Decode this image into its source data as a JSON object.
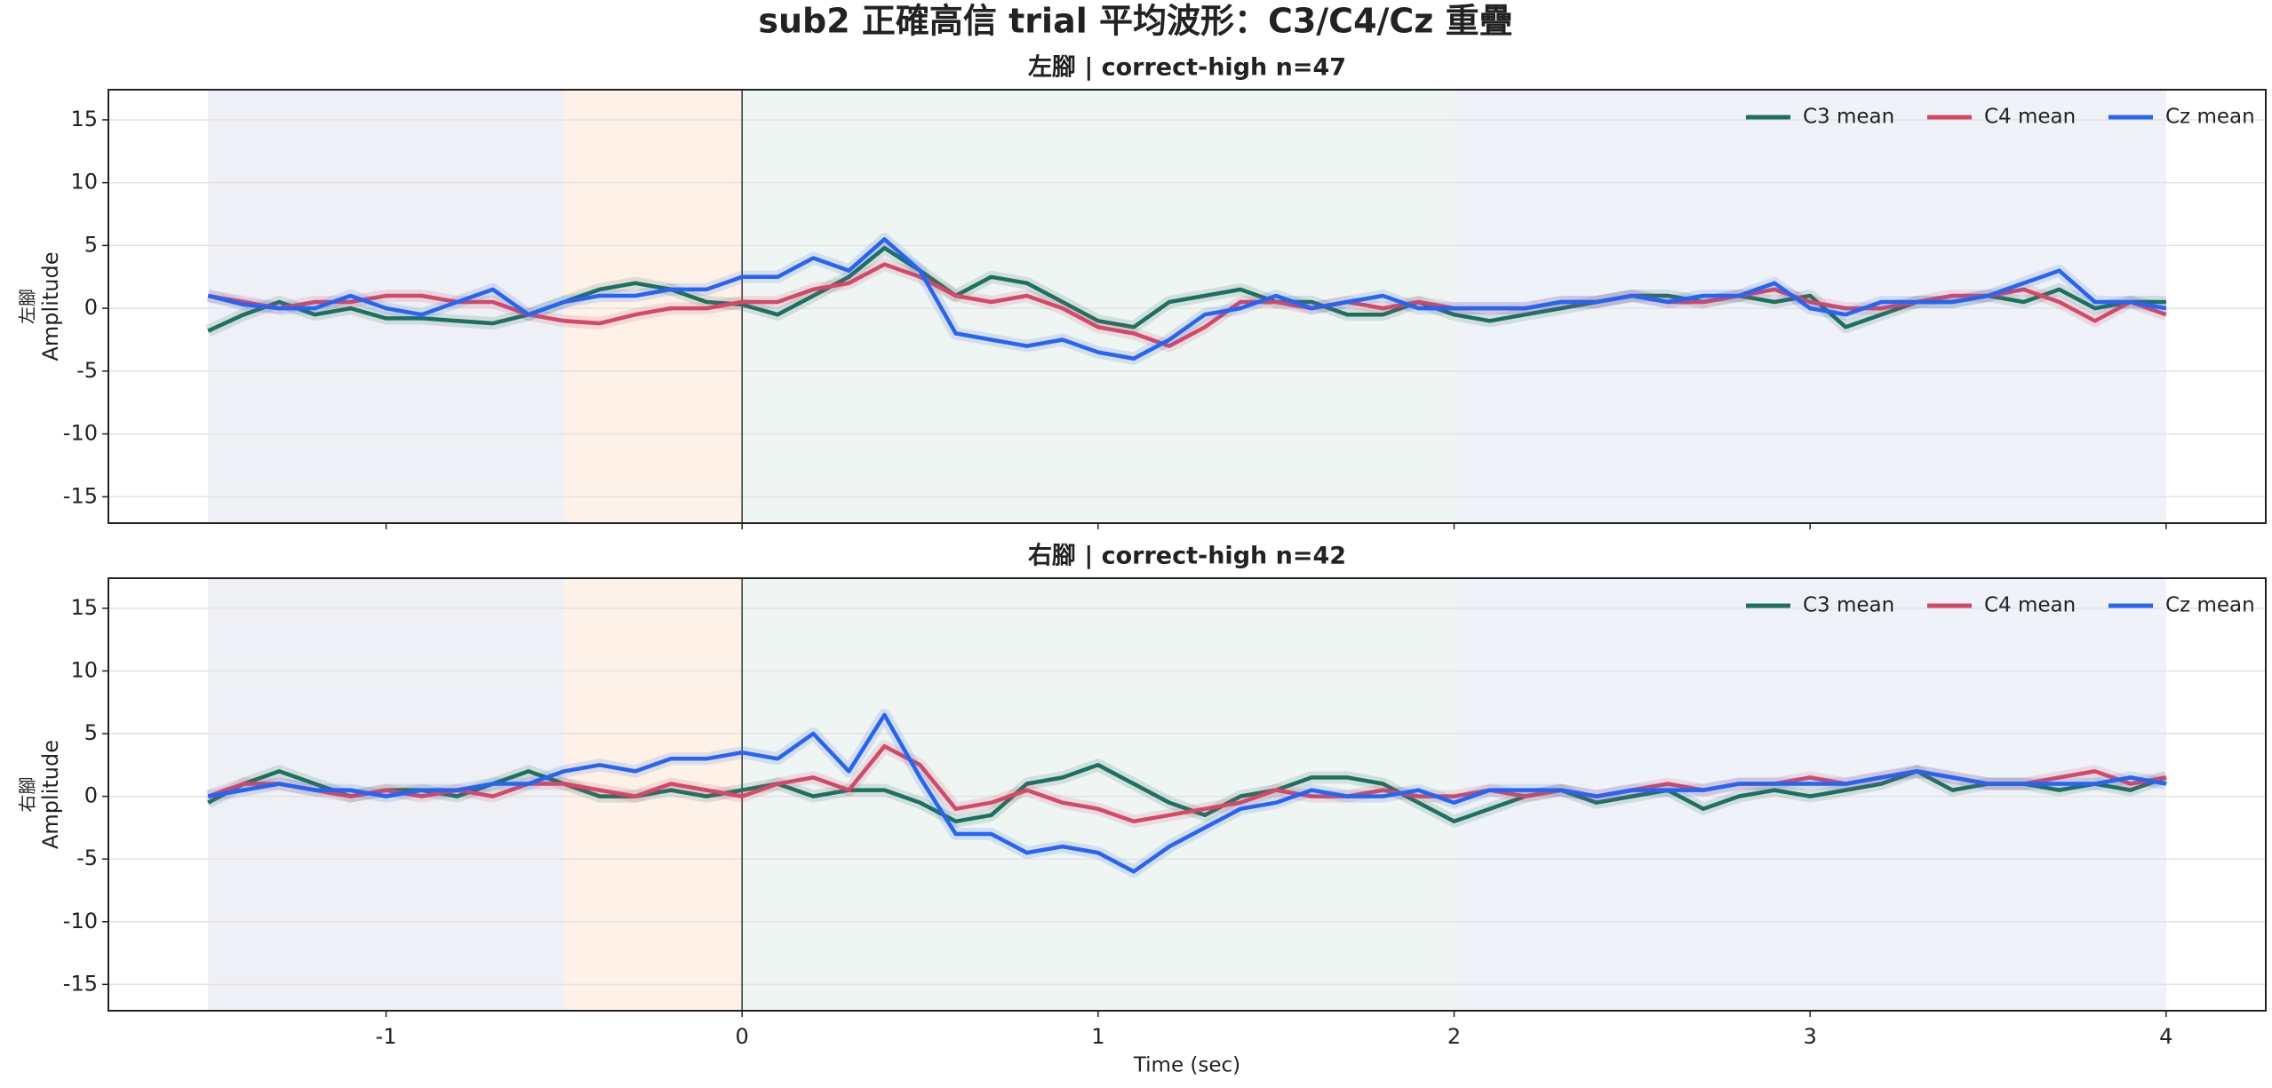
{
  "title": "sub2 正確高信 trial 平均波形：C3/C4/Cz 重疊",
  "chart_data": [
    {
      "type": "line",
      "title": "左腳 | correct-high n=47",
      "ylabel": [
        "左腳",
        "Amplitude"
      ],
      "xlim": [
        -1.78,
        4.28
      ],
      "xticks": [
        -1,
        0,
        1,
        2,
        3,
        4
      ],
      "show_xtick_labels": false,
      "ylim": [
        -17.1,
        17.4
      ],
      "yticks": [
        -15,
        -10,
        -5,
        0,
        5,
        10,
        15
      ],
      "grid": true,
      "legend": "upper right",
      "vline": 0,
      "spans": [
        {
          "x": [
            -1.5,
            -0.5
          ],
          "color": "#eef0f5"
        },
        {
          "x": [
            -0.5,
            0
          ],
          "color": "#fdf1e8"
        },
        {
          "x": [
            0,
            2
          ],
          "color": "#eff5f3"
        },
        {
          "x": [
            2,
            4
          ],
          "color": "#eff2f8"
        }
      ],
      "x": [
        -1.5,
        -1.4,
        -1.3,
        -1.2,
        -1.1,
        -1.0,
        -0.9,
        -0.8,
        -0.7,
        -0.6,
        -0.5,
        -0.4,
        -0.3,
        -0.2,
        -0.1,
        0,
        0.1,
        0.2,
        0.3,
        0.4,
        0.5,
        0.6,
        0.7,
        0.8,
        0.9,
        1.0,
        1.1,
        1.2,
        1.3,
        1.4,
        1.5,
        1.6,
        1.7,
        1.8,
        1.9,
        2.0,
        2.1,
        2.2,
        2.3,
        2.4,
        2.5,
        2.6,
        2.7,
        2.8,
        2.9,
        3.0,
        3.1,
        3.2,
        3.3,
        3.4,
        3.5,
        3.6,
        3.7,
        3.8,
        3.9,
        4.0
      ],
      "series": [
        {
          "name": "C3 mean",
          "color": "#1f6e5e",
          "values": [
            -1.8,
            -0.5,
            0.5,
            -0.5,
            0,
            -0.8,
            -0.8,
            -1.0,
            -1.2,
            -0.5,
            0.5,
            1.5,
            2.0,
            1.5,
            0.5,
            0.3,
            -0.5,
            1.0,
            2.5,
            4.8,
            3.0,
            1.0,
            2.5,
            2.0,
            0.5,
            -1.0,
            -1.5,
            0.5,
            1.0,
            1.5,
            0.5,
            0.5,
            -0.5,
            -0.5,
            0.5,
            -0.5,
            -1.0,
            -0.5,
            0,
            0.5,
            1.0,
            1.0,
            0.5,
            1.0,
            0.5,
            1.0,
            -1.5,
            -0.5,
            0.5,
            0.5,
            1.0,
            0.5,
            1.5,
            0,
            0.5,
            0.5
          ]
        },
        {
          "name": "C4 mean",
          "color": "#d04a6a",
          "values": [
            1.0,
            0.5,
            0,
            0.5,
            0.5,
            1.0,
            1.0,
            0.5,
            0.5,
            -0.5,
            -1.0,
            -1.2,
            -0.5,
            0,
            0,
            0.5,
            0.5,
            1.5,
            2.0,
            3.5,
            2.5,
            1.0,
            0.5,
            1.0,
            0,
            -1.5,
            -2.0,
            -3.0,
            -1.5,
            0.5,
            0.5,
            0,
            0.5,
            0,
            0.5,
            0,
            0,
            0,
            0.5,
            0.5,
            1.0,
            0.5,
            0.5,
            1.0,
            1.5,
            0.5,
            0,
            0,
            0.5,
            1.0,
            1.0,
            1.5,
            0.5,
            -1.0,
            0.5,
            -0.5
          ]
        },
        {
          "name": "Cz mean",
          "color": "#2b64e8",
          "values": [
            1.0,
            0.3,
            0,
            0,
            1.0,
            0,
            -0.5,
            0.5,
            1.5,
            -0.5,
            0.5,
            1.0,
            1.0,
            1.5,
            1.5,
            2.5,
            2.5,
            4.0,
            3.0,
            5.5,
            3.0,
            -2.0,
            -2.5,
            -3.0,
            -2.5,
            -3.5,
            -4.0,
            -2.5,
            -0.5,
            0,
            1.0,
            0,
            0.5,
            1.0,
            0,
            0,
            0,
            0,
            0.5,
            0.5,
            1.0,
            0.5,
            1.0,
            1.0,
            2.0,
            0,
            -0.5,
            0.5,
            0.5,
            0.5,
            1.0,
            2.0,
            3.0,
            0.5,
            0.5,
            0
          ]
        }
      ]
    },
    {
      "type": "line",
      "title": "右腳 | correct-high n=42",
      "ylabel": [
        "右腳",
        "Amplitude"
      ],
      "xlabel": "Time (sec)",
      "xlim": [
        -1.78,
        4.28
      ],
      "xticks": [
        -1,
        0,
        1,
        2,
        3,
        4
      ],
      "show_xtick_labels": true,
      "ylim": [
        -17.1,
        17.4
      ],
      "yticks": [
        -15,
        -10,
        -5,
        0,
        5,
        10,
        15
      ],
      "grid": true,
      "legend": "upper right",
      "vline": 0,
      "spans": [
        {
          "x": [
            -1.5,
            -0.5
          ],
          "color": "#eef0f5"
        },
        {
          "x": [
            -0.5,
            0
          ],
          "color": "#fdf1e8"
        },
        {
          "x": [
            0,
            2
          ],
          "color": "#eff5f3"
        },
        {
          "x": [
            2,
            4
          ],
          "color": "#eff2f8"
        }
      ],
      "x": [
        -1.5,
        -1.4,
        -1.3,
        -1.2,
        -1.1,
        -1.0,
        -0.9,
        -0.8,
        -0.7,
        -0.6,
        -0.5,
        -0.4,
        -0.3,
        -0.2,
        -0.1,
        0,
        0.1,
        0.2,
        0.3,
        0.4,
        0.5,
        0.6,
        0.7,
        0.8,
        0.9,
        1.0,
        1.1,
        1.2,
        1.3,
        1.4,
        1.5,
        1.6,
        1.7,
        1.8,
        1.9,
        2.0,
        2.1,
        2.2,
        2.3,
        2.4,
        2.5,
        2.6,
        2.7,
        2.8,
        2.9,
        3.0,
        3.1,
        3.2,
        3.3,
        3.4,
        3.5,
        3.6,
        3.7,
        3.8,
        3.9,
        4.0
      ],
      "series": [
        {
          "name": "C3 mean",
          "color": "#1f6e5e",
          "values": [
            -0.5,
            1.0,
            2.0,
            1.0,
            0,
            0.5,
            0.5,
            0,
            1.0,
            2.0,
            1.0,
            0,
            0,
            0.5,
            0,
            0.5,
            1.0,
            0,
            0.5,
            0.5,
            -0.5,
            -2.0,
            -1.5,
            1.0,
            1.5,
            2.5,
            1.0,
            -0.5,
            -1.5,
            0,
            0.5,
            1.5,
            1.5,
            1.0,
            -0.5,
            -2.0,
            -1.0,
            0,
            0.5,
            -0.5,
            0,
            0.5,
            -1.0,
            0,
            0.5,
            0,
            0.5,
            1.0,
            2.0,
            0.5,
            1.0,
            1.0,
            0.5,
            1.0,
            0.5,
            1.5
          ]
        },
        {
          "name": "C4 mean",
          "color": "#d04a6a",
          "values": [
            0,
            1.0,
            1.0,
            0.5,
            0,
            0.5,
            0,
            0.5,
            0,
            1.0,
            1.0,
            0.5,
            0,
            1.0,
            0.5,
            0,
            1.0,
            1.5,
            0.5,
            4.0,
            2.5,
            -1.0,
            -0.5,
            0.5,
            -0.5,
            -1.0,
            -2.0,
            -1.5,
            -1.0,
            -0.5,
            0.5,
            0,
            0,
            0.5,
            0,
            0,
            0.5,
            0,
            0.5,
            0,
            0.5,
            1.0,
            0.5,
            1.0,
            1.0,
            1.5,
            1.0,
            1.5,
            2.0,
            1.5,
            1.0,
            1.0,
            1.5,
            2.0,
            1.0,
            1.5
          ]
        },
        {
          "name": "Cz mean",
          "color": "#2b64e8",
          "values": [
            0,
            0.5,
            1.0,
            0.5,
            0.5,
            0,
            0.5,
            0.5,
            1.0,
            1.0,
            2.0,
            2.5,
            2.0,
            3.0,
            3.0,
            3.5,
            3.0,
            5.0,
            2.0,
            6.5,
            1.5,
            -3.0,
            -3.0,
            -4.5,
            -4.0,
            -4.5,
            -6.0,
            -4.0,
            -2.5,
            -1.0,
            -0.5,
            0.5,
            0,
            0,
            0.5,
            -0.5,
            0.5,
            0.5,
            0.5,
            0,
            0.5,
            0.5,
            0.5,
            1.0,
            1.0,
            1.0,
            1.0,
            1.5,
            2.0,
            1.5,
            1.0,
            1.0,
            1.0,
            1.0,
            1.5,
            1.0
          ]
        }
      ]
    }
  ]
}
